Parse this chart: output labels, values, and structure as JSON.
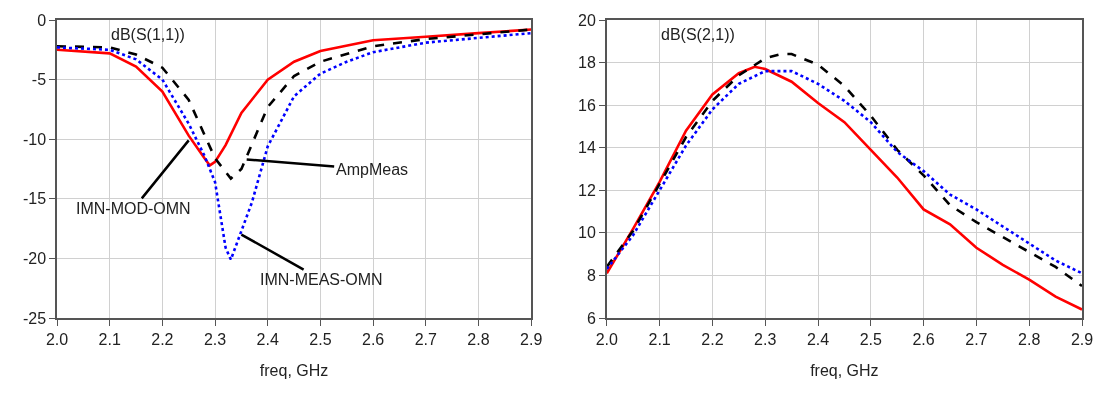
{
  "chart_data": [
    {
      "type": "line",
      "title": "dB(S(1,1))",
      "xlabel": "freq, GHz",
      "xlim": [
        2.0,
        2.9
      ],
      "xticks": [
        {
          "value": 2.0,
          "label": "2.0"
        },
        {
          "value": 2.1,
          "label": "2.1"
        },
        {
          "value": 2.2,
          "label": "2.2"
        },
        {
          "value": 2.3,
          "label": "2.3"
        },
        {
          "value": 2.4,
          "label": "2.4"
        },
        {
          "value": 2.5,
          "label": "2.5"
        },
        {
          "value": 2.6,
          "label": "2.6"
        },
        {
          "value": 2.7,
          "label": "2.7"
        },
        {
          "value": 2.8,
          "label": "2.8"
        },
        {
          "value": 2.9,
          "label": "2.9"
        }
      ],
      "ylim": [
        -25,
        0
      ],
      "yticks": [
        -25,
        -20,
        -15,
        -10,
        -5,
        0
      ],
      "grid": true,
      "marker": "none",
      "series": [
        {
          "color": "#ff0000",
          "line_style": "solid",
          "x": [
            2.0,
            2.1,
            2.15,
            2.2,
            2.25,
            2.28,
            2.29,
            2.3,
            2.32,
            2.35,
            2.4,
            2.45,
            2.5,
            2.6,
            2.7,
            2.8,
            2.9
          ],
          "values": [
            -2.5,
            -2.8,
            -3.9,
            -6.0,
            -9.7,
            -11.6,
            -12.2,
            -11.9,
            -10.5,
            -7.8,
            -5.0,
            -3.5,
            -2.6,
            -1.7,
            -1.4,
            -1.1,
            -0.8
          ]
        },
        {
          "color": "#000000",
          "line_style": "dashed",
          "x": [
            2.0,
            2.1,
            2.15,
            2.2,
            2.25,
            2.3,
            2.33,
            2.35,
            2.4,
            2.45,
            2.5,
            2.6,
            2.7,
            2.8,
            2.9
          ],
          "values": [
            -2.2,
            -2.3,
            -2.9,
            -4.0,
            -6.7,
            -11.6,
            -13.3,
            -12.5,
            -7.3,
            -4.7,
            -3.5,
            -2.2,
            -1.6,
            -1.2,
            -0.8
          ]
        },
        {
          "color": "#0000ff",
          "line_style": "dotted",
          "x": [
            2.0,
            2.1,
            2.15,
            2.2,
            2.25,
            2.28,
            2.3,
            2.32,
            2.33,
            2.35,
            2.37,
            2.4,
            2.45,
            2.5,
            2.55,
            2.6,
            2.7,
            2.8,
            2.9
          ],
          "values": [
            -2.3,
            -2.5,
            -3.3,
            -5.0,
            -8.7,
            -11.4,
            -13.6,
            -19.1,
            -20.1,
            -17.7,
            -15.3,
            -10.6,
            -6.4,
            -4.5,
            -3.5,
            -2.7,
            -1.9,
            -1.5,
            -1.1
          ]
        }
      ],
      "annotations": [
        {
          "text": "IMN-MOD-OMN",
          "x": 2.25,
          "y": -10.1
        },
        {
          "text": "AmpMeas",
          "x": 2.36,
          "y": -11.7
        },
        {
          "text": "IMN-MEAS-OMN",
          "x": 2.35,
          "y": -18.0
        }
      ]
    },
    {
      "type": "line",
      "title": "dB(S(2,1))",
      "xlabel": "freq, GHz",
      "xlim": [
        2.0,
        2.9
      ],
      "xticks": [
        {
          "value": 2.0,
          "label": "2.0"
        },
        {
          "value": 2.1,
          "label": "2.1"
        },
        {
          "value": 2.2,
          "label": "2.2"
        },
        {
          "value": 2.3,
          "label": "2.3"
        },
        {
          "value": 2.4,
          "label": "2.4"
        },
        {
          "value": 2.5,
          "label": "2.5"
        },
        {
          "value": 2.6,
          "label": "2.6"
        },
        {
          "value": 2.7,
          "label": "2.7"
        },
        {
          "value": 2.8,
          "label": "2.8"
        },
        {
          "value": 2.9,
          "label": "2.9"
        }
      ],
      "ylim": [
        6,
        20
      ],
      "yticks": [
        6,
        8,
        10,
        12,
        14,
        16,
        18,
        20
      ],
      "grid": true,
      "marker": "none",
      "series": [
        {
          "color": "#ff0000",
          "line_style": "solid",
          "x": [
            2.0,
            2.05,
            2.1,
            2.15,
            2.2,
            2.25,
            2.28,
            2.3,
            2.35,
            2.4,
            2.45,
            2.5,
            2.55,
            2.6,
            2.65,
            2.7,
            2.75,
            2.8,
            2.85,
            2.9
          ],
          "values": [
            8.1,
            10.2,
            12.4,
            14.8,
            16.5,
            17.5,
            17.8,
            17.7,
            17.1,
            16.1,
            15.2,
            13.9,
            12.6,
            11.1,
            10.4,
            9.3,
            8.5,
            7.8,
            7.0,
            6.4
          ]
        },
        {
          "color": "#000000",
          "line_style": "dashed",
          "x": [
            2.0,
            2.05,
            2.1,
            2.15,
            2.2,
            2.25,
            2.3,
            2.33,
            2.35,
            2.4,
            2.45,
            2.5,
            2.55,
            2.6,
            2.65,
            2.7,
            2.75,
            2.8,
            2.85,
            2.9
          ],
          "values": [
            8.4,
            10.1,
            12.3,
            14.5,
            16.2,
            17.4,
            18.2,
            18.4,
            18.4,
            17.9,
            16.9,
            15.5,
            13.9,
            12.7,
            11.3,
            10.5,
            9.8,
            9.1,
            8.4,
            7.5
          ]
        },
        {
          "color": "#0000ff",
          "line_style": "dotted",
          "x": [
            2.0,
            2.05,
            2.1,
            2.15,
            2.2,
            2.25,
            2.3,
            2.35,
            2.4,
            2.45,
            2.5,
            2.55,
            2.6,
            2.65,
            2.7,
            2.75,
            2.8,
            2.85,
            2.9
          ],
          "values": [
            8.3,
            9.9,
            12.0,
            14.1,
            15.8,
            17.0,
            17.6,
            17.6,
            17.0,
            16.2,
            15.2,
            13.8,
            12.9,
            11.8,
            11.1,
            10.3,
            9.5,
            8.7,
            8.1
          ]
        }
      ]
    }
  ]
}
